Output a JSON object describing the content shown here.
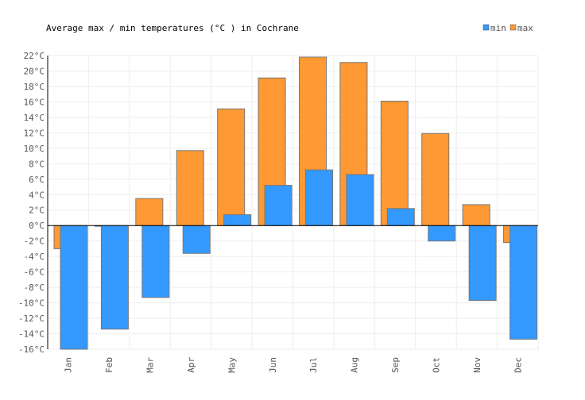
{
  "chart_data": {
    "type": "bar",
    "title": "Average max / min temperatures (°C ) in Cochrane",
    "categories": [
      "Jan",
      "Feb",
      "Mar",
      "Apr",
      "May",
      "Jun",
      "Jul",
      "Aug",
      "Sep",
      "Oct",
      "Nov",
      "Dec"
    ],
    "series": [
      {
        "name": "min",
        "color": "#3399ff",
        "values": [
          -16.0,
          -13.4,
          -9.3,
          -3.6,
          1.4,
          5.2,
          7.2,
          6.6,
          2.2,
          -2.0,
          -9.7,
          -14.7
        ]
      },
      {
        "name": "max",
        "color": "#ff9933",
        "values": [
          -3.0,
          -0.1,
          3.5,
          9.7,
          15.1,
          19.1,
          21.8,
          21.1,
          16.1,
          11.9,
          2.7,
          -2.2
        ]
      }
    ],
    "ylim": [
      -16,
      22
    ],
    "yticks": [
      -16,
      -14,
      -12,
      -10,
      -8,
      -6,
      -4,
      -2,
      0,
      2,
      4,
      6,
      8,
      10,
      12,
      14,
      16,
      18,
      20,
      22
    ],
    "yunit": "°C",
    "grid": true,
    "legend": "top-right"
  }
}
